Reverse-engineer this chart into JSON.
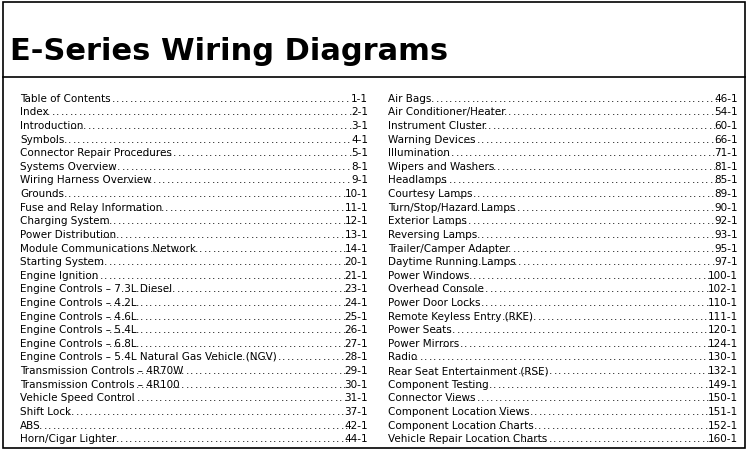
{
  "title": "E-Series Wiring Diagrams",
  "background_color": "#ffffff",
  "border_color": "#000000",
  "title_font_size": 22,
  "entry_font_size": 7.5,
  "left_entries": [
    [
      "Table of Contents",
      "1-1"
    ],
    [
      "Index",
      "2-1"
    ],
    [
      "Introduction",
      "3-1"
    ],
    [
      "Symbols",
      "4-1"
    ],
    [
      "Connector Repair Procedures",
      "5-1"
    ],
    [
      "Systems Overview",
      "8-1"
    ],
    [
      "Wiring Harness Overview",
      "9-1"
    ],
    [
      "Grounds",
      "10-1"
    ],
    [
      "Fuse and Relay Information",
      "11-1"
    ],
    [
      "Charging System",
      "12-1"
    ],
    [
      "Power Distribution",
      "13-1"
    ],
    [
      "Module Communications Network",
      "14-1"
    ],
    [
      "Starting System",
      "20-1"
    ],
    [
      "Engine Ignition",
      "21-1"
    ],
    [
      "Engine Controls – 7.3L Diesel",
      "23-1"
    ],
    [
      "Engine Controls – 4.2L",
      "24-1"
    ],
    [
      "Engine Controls – 4.6L",
      "25-1"
    ],
    [
      "Engine Controls – 5.4L",
      "26-1"
    ],
    [
      "Engine Controls – 6.8L",
      "27-1"
    ],
    [
      "Engine Controls – 5.4L Natural Gas Vehicle (NGV)",
      "28-1"
    ],
    [
      "Transmission Controls – 4R70W",
      "29-1"
    ],
    [
      "Transmission Controls – 4R100",
      "30-1"
    ],
    [
      "Vehicle Speed Control",
      "31-1"
    ],
    [
      "Shift Lock",
      "37-1"
    ],
    [
      "ABS",
      "42-1"
    ],
    [
      "Horn/Cigar Lighter",
      "44-1"
    ]
  ],
  "right_entries": [
    [
      "Air Bags",
      "46-1"
    ],
    [
      "Air Conditioner/Heater",
      "54-1"
    ],
    [
      "Instrument Cluster",
      "60-1"
    ],
    [
      "Warning Devices",
      "66-1"
    ],
    [
      "Illumination",
      "71-1"
    ],
    [
      "Wipers and Washers",
      "81-1"
    ],
    [
      "Headlamps",
      "85-1"
    ],
    [
      "Courtesy Lamps",
      "89-1"
    ],
    [
      "Turn/Stop/Hazard Lamps",
      "90-1"
    ],
    [
      "Exterior Lamps",
      "92-1"
    ],
    [
      "Reversing Lamps",
      "93-1"
    ],
    [
      "Trailer/Camper Adapter",
      "95-1"
    ],
    [
      "Daytime Running Lamps",
      "97-1"
    ],
    [
      "Power Windows",
      "100-1"
    ],
    [
      "Overhead Console",
      "102-1"
    ],
    [
      "Power Door Locks",
      "110-1"
    ],
    [
      "Remote Keyless Entry (RKE)",
      "111-1"
    ],
    [
      "Power Seats",
      "120-1"
    ],
    [
      "Power Mirrors",
      "124-1"
    ],
    [
      "Radio",
      "130-1"
    ],
    [
      "Rear Seat Entertainment (RSE)",
      "132-1"
    ],
    [
      "Component Testing",
      "149-1"
    ],
    [
      "Connector Views",
      "150-1"
    ],
    [
      "Component Location Views",
      "151-1"
    ],
    [
      "Component Location Charts",
      "152-1"
    ],
    [
      "Vehicle Repair Location Charts",
      "160-1"
    ]
  ]
}
